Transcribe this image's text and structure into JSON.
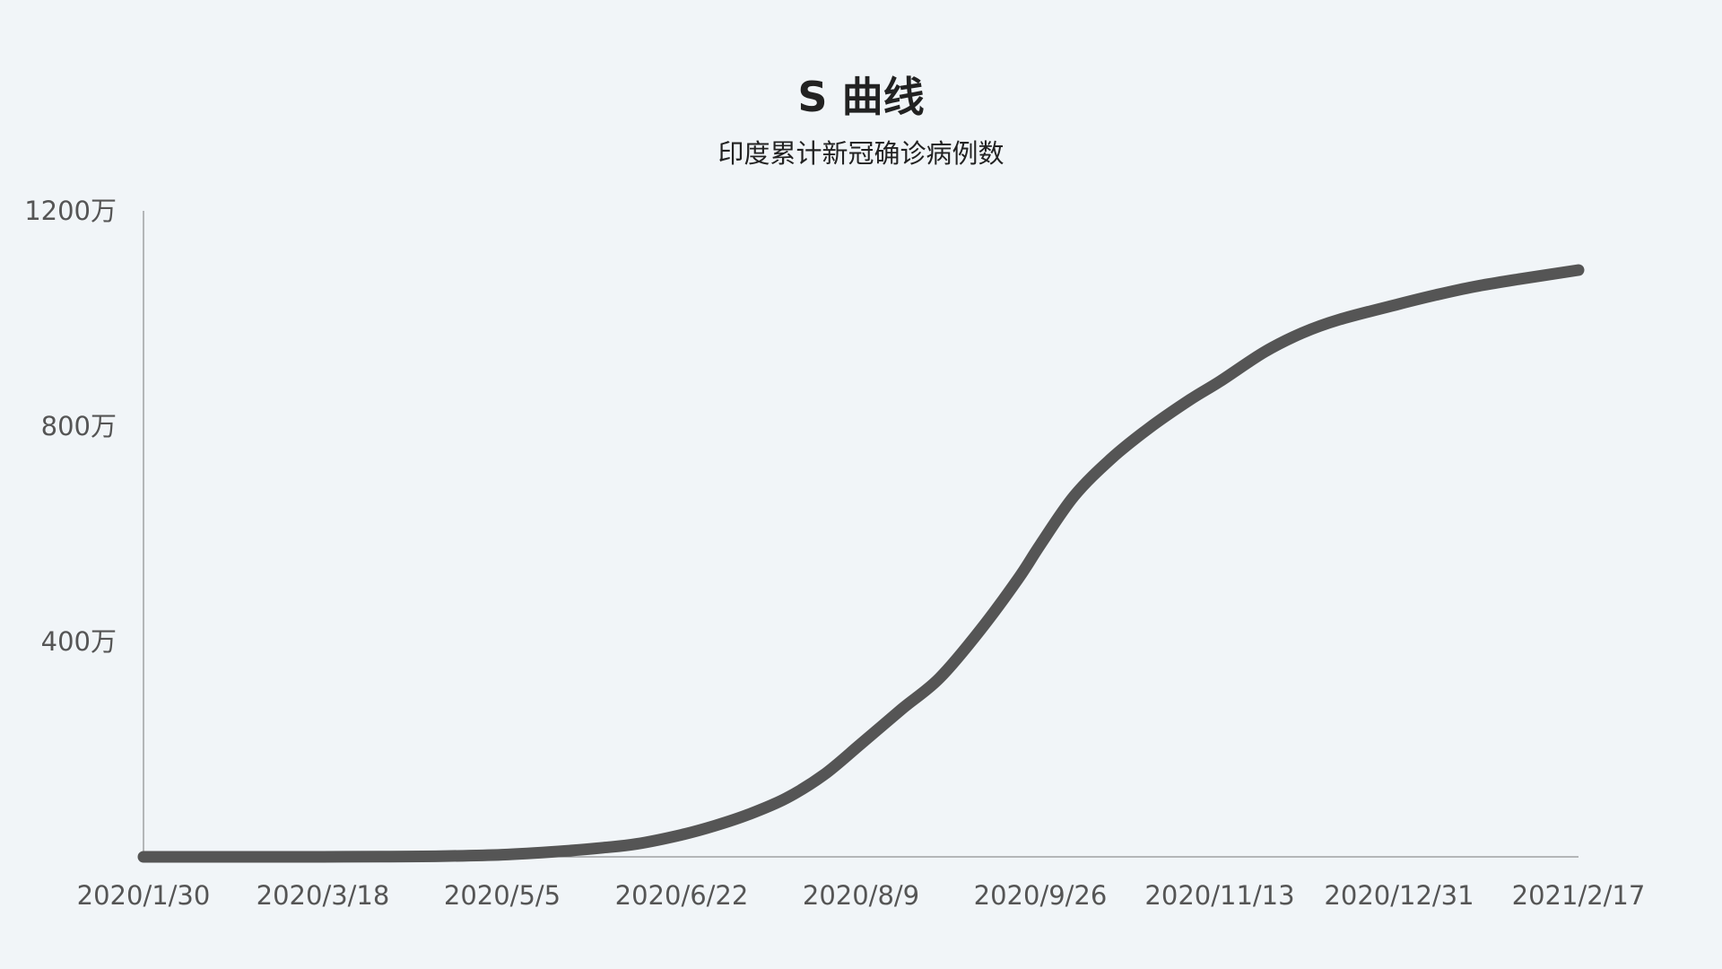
{
  "chart_data": {
    "type": "line",
    "title": "S 曲线",
    "subtitle": "印度累计新冠确诊病例数",
    "xlabel": "",
    "ylabel": "",
    "grid": false,
    "x_tick_labels": [
      "2020/1/30",
      "2020/3/18",
      "2020/5/5",
      "2020/6/22",
      "2020/8/9",
      "2020/9/26",
      "2020/11/13",
      "2020/12/31",
      "2021/2/17"
    ],
    "y_tick_labels": [
      "400万",
      "800万",
      "1200万"
    ],
    "y_unit": "万",
    "ylim": [
      0,
      1200
    ],
    "xlim": [
      "2020/1/30",
      "2021/2/17"
    ],
    "line_color": "#555555",
    "series": [
      {
        "x": [
          "2020/1/30",
          "2020/2/20",
          "2020/3/18",
          "2020/4/5",
          "2020/4/20",
          "2020/5/5",
          "2020/5/20",
          "2020/6/1",
          "2020/6/10",
          "2020/6/22",
          "2020/7/1",
          "2020/7/10",
          "2020/7/20",
          "2020/7/30",
          "2020/8/9",
          "2020/8/20",
          "2020/8/30",
          "2020/9/10",
          "2020/9/20",
          "2020/9/26",
          "2020/10/5",
          "2020/10/15",
          "2020/10/25",
          "2020/11/5",
          "2020/11/13",
          "2020/11/25",
          "2020/12/5",
          "2020/12/15",
          "2020/12/31",
          "2021/1/10",
          "2021/1/20",
          "2021/2/1",
          "2021/2/17"
        ],
        "values": [
          0,
          0,
          0,
          0.5,
          1.5,
          4,
          10,
          17,
          24,
          41,
          58,
          79,
          109,
          152,
          210,
          275,
          332,
          422,
          516,
          580,
          670,
          740,
          796,
          849,
          883,
          938,
          973,
          998,
          1027,
          1044,
          1059,
          1073,
          1090
        ]
      }
    ]
  }
}
